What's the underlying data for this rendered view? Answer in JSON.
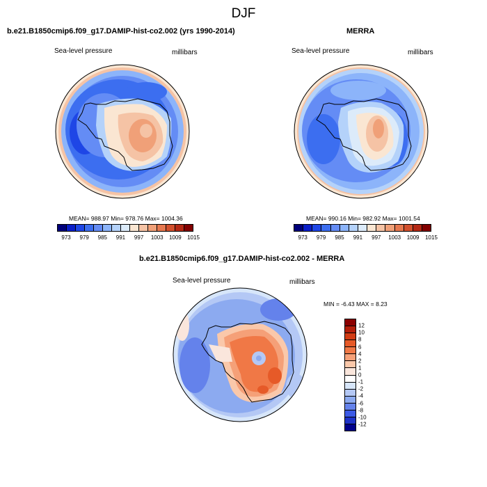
{
  "season": "DJF",
  "panels": {
    "model": {
      "title": "b.e21.B1850cmip6.f09_g17.DAMIP-hist-co2.002 (yrs 1990-2014)",
      "variable": "Sea-level pressure",
      "units": "millibars",
      "stats": "MEAN= 988.97   Min= 978.76   Max= 1004.36"
    },
    "obs": {
      "title": "MERRA",
      "variable": "Sea-level pressure",
      "units": "millibars",
      "stats": "MEAN= 990.16   Min= 982.92   Max= 1001.54"
    },
    "diff": {
      "title": "b.e21.B1850cmip6.f09_g17.DAMIP-hist-co2.002 - MERRA",
      "variable": "Sea-level pressure",
      "units": "millibars",
      "stats": "MIN =  -6.43  MAX =   8.23"
    }
  },
  "chart_data": [
    {
      "type": "heatmap",
      "projection": "polar stereographic (south)",
      "title": "b.e21.B1850cmip6.f09_g17.DAMIP-hist-co2.002 (yrs 1990-2014)",
      "variable": "Sea-level pressure",
      "units": "millibars",
      "mean": 988.97,
      "min": 978.76,
      "max": 1004.36,
      "colorbar_ticks": [
        "973",
        "979",
        "985",
        "991",
        "997",
        "1003",
        "1009",
        "1015"
      ],
      "colorbar_colors": [
        "#00007a",
        "#0a1ec8",
        "#1e46e6",
        "#3c6ef0",
        "#648cf5",
        "#8cb4fa",
        "#b4d2fa",
        "#dcebfa",
        "#fae6d2",
        "#f5c3a5",
        "#f0a078",
        "#e6784f",
        "#d2502d",
        "#b42814",
        "#820000"
      ]
    },
    {
      "type": "heatmap",
      "projection": "polar stereographic (south)",
      "title": "MERRA",
      "variable": "Sea-level pressure",
      "units": "millibars",
      "mean": 990.16,
      "min": 982.92,
      "max": 1001.54,
      "colorbar_ticks": [
        "973",
        "979",
        "985",
        "991",
        "997",
        "1003",
        "1009",
        "1015"
      ],
      "colorbar_colors": [
        "#00007a",
        "#0a1ec8",
        "#1e46e6",
        "#3c6ef0",
        "#648cf5",
        "#8cb4fa",
        "#b4d2fa",
        "#dcebfa",
        "#fae6d2",
        "#f5c3a5",
        "#f0a078",
        "#e6784f",
        "#d2502d",
        "#b42814",
        "#820000"
      ]
    },
    {
      "type": "heatmap",
      "projection": "polar stereographic (south)",
      "title": "b.e21.B1850cmip6.f09_g17.DAMIP-hist-co2.002 - MERRA",
      "variable": "Sea-level pressure",
      "units": "millibars",
      "min": -6.43,
      "max": 8.23,
      "colorbar_ticks": [
        "12",
        "10",
        "8",
        "6",
        "4",
        "2",
        "1",
        "0",
        "-1",
        "-2",
        "-4",
        "-6",
        "-8",
        "-10",
        "-12"
      ],
      "colorbar_colors": [
        "#8b0000",
        "#b41e0a",
        "#d23c14",
        "#e65a28",
        "#f07846",
        "#f5a078",
        "#fac8aa",
        "#fae6dc",
        "#ffffff",
        "#d7e6fa",
        "#b4c8f5",
        "#8caaf0",
        "#6482eb",
        "#3c5ae6",
        "#1e32c8",
        "#00008b"
      ]
    }
  ]
}
